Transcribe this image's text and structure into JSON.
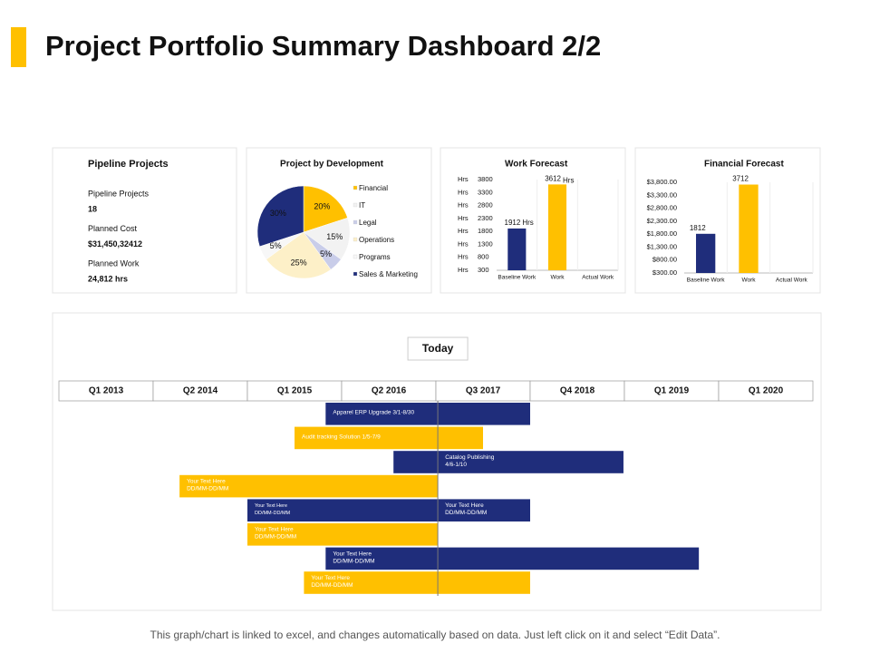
{
  "title": "Project Portfolio Summary Dashboard 2/2",
  "pipeline": {
    "title": "Pipeline Projects",
    "items": [
      {
        "label": "Pipeline Projects",
        "value": "18"
      },
      {
        "label": "Planned Cost",
        "value": "$31,450,32412"
      },
      {
        "label": "Planned Work",
        "value": "24,812 hrs"
      }
    ]
  },
  "chart_data": [
    {
      "type": "pie",
      "title": "Project by Development",
      "categories": [
        "Financial",
        "IT",
        "Legal",
        "Operations",
        "Programs",
        "Sales & Marketing"
      ],
      "values": [
        20,
        15,
        5,
        25,
        5,
        30
      ],
      "value_labels": [
        "20%",
        "15%",
        "5%",
        "25%",
        "5%",
        "30%"
      ],
      "colors": [
        "#ffc000",
        "#f2f2f2",
        "#c9cde9",
        "#fdf0c8",
        "#f7f7f7",
        "#1f2d7b"
      ]
    },
    {
      "type": "bar",
      "title": "Work Forecast",
      "y_unit": "Hrs",
      "categories": [
        "Baseline Work",
        "Work",
        "Actual Work"
      ],
      "values": [
        1912,
        3612,
        null
      ],
      "value_labels": [
        "1912",
        "3612",
        null
      ],
      "colors": [
        "#1f2d7b",
        "#ffc000",
        "#ffc000"
      ],
      "ylim": [
        300,
        3800
      ],
      "yticks": [
        300,
        800,
        1300,
        1800,
        2300,
        2800,
        3300,
        3800
      ]
    },
    {
      "type": "bar",
      "title": "Financial Forecast",
      "categories": [
        "Baseline Work",
        "Work",
        "Actual Work"
      ],
      "values": [
        1812,
        3712,
        null
      ],
      "colors": [
        "#1f2d7b",
        "#ffc000",
        "#ffc000"
      ],
      "ylim": [
        300,
        3800
      ],
      "yticks": [
        {
          "value": 300,
          "label": "$300.00"
        },
        {
          "value": 800,
          "label": "$800.00"
        },
        {
          "value": 1300,
          "label": "$1,300.00"
        },
        {
          "value": 1800,
          "label": "$1,800.00"
        },
        {
          "value": 2300,
          "label": "$2,300.00"
        },
        {
          "value": 2800,
          "label": "$2,800.00"
        },
        {
          "value": 3300,
          "label": "$3,300.00"
        },
        {
          "value": 3800,
          "label": "$3,800.00"
        }
      ]
    },
    {
      "type": "gantt",
      "categories": [
        "Q1 2013",
        "Q2 2014",
        "Q1 2015",
        "Q2 2016",
        "Q3 2017",
        "Q4 2018",
        "Q1 2019",
        "Q1 2020"
      ],
      "xlim": [
        0,
        8
      ],
      "today": {
        "label": "Today",
        "value": 4.02
      },
      "tasks": [
        {
          "start": 2.83,
          "end": 5.0,
          "color": "#1f2d7b",
          "labels": [
            [
              "Apparel ERP Upgrade 3/1-8/30"
            ]
          ]
        },
        {
          "start": 2.5,
          "end": 4.5,
          "color": "#ffc000",
          "labels": [
            [
              "Audit tracking Solution 1/5-7/9"
            ]
          ]
        },
        {
          "start": 3.55,
          "end": 5.99,
          "color": "#1f2d7b",
          "labels": [
            [
              "Catalog Publishing",
              "4/6-1/10"
            ]
          ]
        },
        {
          "start": 1.28,
          "end": 4.02,
          "color": "#ffc000",
          "labels": [
            [
              "Your Text Here",
              "DD/MM-DD/MM"
            ]
          ]
        },
        {
          "start": 2.0,
          "end": 5.0,
          "color": "#1f2d7b",
          "labels": [
            [
              "Your Text Here",
              "DD/MM-DD/MM"
            ],
            [
              "Your Text Here",
              "DD/MM-DD/MM"
            ]
          ]
        },
        {
          "start": 2.0,
          "end": 4.02,
          "color": "#ffc000",
          "labels": [
            [
              "Your Text Here",
              "DD/MM-DD/MM"
            ]
          ]
        },
        {
          "start": 2.83,
          "end": 6.79,
          "color": "#1f2d7b",
          "labels": [
            [
              "Your Text Here",
              "DD/MM-DD/MM"
            ]
          ]
        },
        {
          "start": 2.6,
          "end": 5.0,
          "color": "#ffc000",
          "labels": [
            [
              "Your Text Here",
              "DD/MM-DD/MM"
            ]
          ]
        }
      ]
    }
  ],
  "footer": "This graph/chart is linked to excel, and changes automatically based on data. Just left click on it and select “Edit Data”."
}
